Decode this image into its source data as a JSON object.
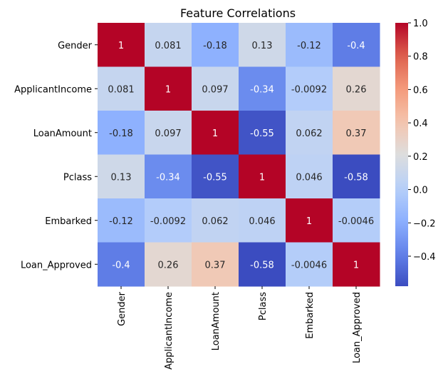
{
  "chart_data": {
    "type": "heatmap",
    "title": "Feature Correlations",
    "xlabel": "",
    "ylabel": "",
    "rows": [
      "Gender",
      "ApplicantIncome",
      "LoanAmount",
      "Pclass",
      "Embarked",
      "Loan_Approved"
    ],
    "columns": [
      "Gender",
      "ApplicantIncome",
      "LoanAmount",
      "Pclass",
      "Embarked",
      "Loan_Approved"
    ],
    "values": [
      [
        1,
        0.081,
        -0.18,
        0.13,
        -0.12,
        -0.4
      ],
      [
        0.081,
        1,
        0.097,
        -0.34,
        -0.0092,
        0.26
      ],
      [
        -0.18,
        0.097,
        1,
        -0.55,
        0.062,
        0.37
      ],
      [
        0.13,
        -0.34,
        -0.55,
        1,
        0.046,
        -0.58
      ],
      [
        -0.12,
        -0.0092,
        0.062,
        0.046,
        1,
        -0.0046
      ],
      [
        -0.4,
        0.26,
        0.37,
        -0.58,
        -0.0046,
        1
      ]
    ],
    "annotations": [
      [
        "1",
        "0.081",
        "-0.18",
        "0.13",
        "-0.12",
        "-0.4"
      ],
      [
        "0.081",
        "1",
        "0.097",
        "-0.34",
        "-0.0092",
        "0.26"
      ],
      [
        "-0.18",
        "0.097",
        "1",
        "-0.55",
        "0.062",
        "0.37"
      ],
      [
        "0.13",
        "-0.34",
        "-0.55",
        "1",
        "0.046",
        "-0.58"
      ],
      [
        "-0.12",
        "-0.0092",
        "0.062",
        "0.046",
        "1",
        "-0.0046"
      ],
      [
        "-0.4",
        "0.26",
        "0.37",
        "-0.58",
        "-0.0046",
        "1"
      ]
    ],
    "colormap": "coolwarm",
    "vmin": -0.58,
    "vmax": 1,
    "colorbar_ticks": [
      1.0,
      0.8,
      0.6,
      0.4,
      0.2,
      0.0,
      -0.2,
      -0.4
    ],
    "colorbar_tick_labels": [
      "1.0",
      "0.8",
      "0.6",
      "0.4",
      "0.2",
      "0.0",
      "−0.2",
      "−0.4"
    ],
    "grid": false,
    "legend": "colorbar-right"
  }
}
